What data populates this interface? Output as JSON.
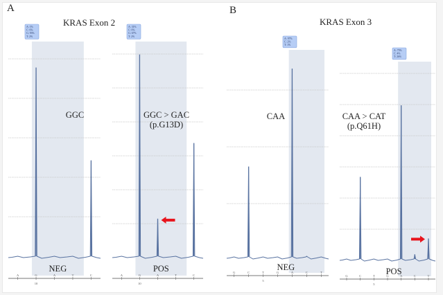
{
  "panels": [
    {
      "letter": "A",
      "title": "KRAS Exon 2"
    },
    {
      "letter": "B",
      "title": "KRAS Exon 3"
    }
  ],
  "colors": {
    "trace": "#5872a0",
    "highlight": "#e3e8f0",
    "grid": "#c8c8c8",
    "arrow": "#e8141c",
    "box_fill": "#b6cdf5",
    "box_border": "#8aa8e0"
  },
  "chart_data": [
    {
      "type": "line",
      "name": "exon2-neg",
      "title": "KRAS Exon 2",
      "codon_label": "GGC",
      "sample_label": "NEG",
      "base_frequencies": [
        "A: 1%",
        "C: 6%",
        "G: 93%",
        "T: 2%"
      ],
      "x_ticks": [
        "A",
        "G",
        "A",
        "T",
        "C"
      ],
      "x_position_label": "10",
      "peaks": [
        {
          "base_index": 1,
          "height": 0.88
        },
        {
          "base_index": 4,
          "height": 0.45
        }
      ],
      "highlighted_bases": [
        1,
        3.6
      ],
      "gridlines": 5,
      "arrow": null
    },
    {
      "type": "line",
      "name": "exon2-pos",
      "title": "KRAS Exon 2",
      "codon_label": "GGC > GAC",
      "codon_sublabel": "(p.G13D)",
      "sample_label": "POS",
      "base_frequencies": [
        "A: 31%",
        "C: 0%",
        "G: 67%",
        "T: 2%"
      ],
      "x_ticks": [
        "A",
        "G",
        "A",
        "T",
        "C"
      ],
      "x_position_label": "10",
      "peaks": [
        {
          "base_index": 1,
          "height": 0.94
        },
        {
          "base_index": 2,
          "height": 0.18
        },
        {
          "base_index": 4,
          "height": 0.53
        }
      ],
      "highlighted_bases": [
        1,
        3.6
      ],
      "gridlines": 6,
      "arrow": {
        "target": "peak-2",
        "direction": "left"
      }
    },
    {
      "type": "line",
      "name": "exon3-neg",
      "title": "KRAS Exon 3",
      "codon_label": "CAA",
      "sample_label": "NEG",
      "base_frequencies": [
        "A: 97%",
        "C: 2%",
        "T: 1%"
      ],
      "x_ticks": [
        "G",
        "C",
        "T",
        "G",
        "A",
        "C",
        "T"
      ],
      "x_position_label": "5",
      "peaks": [
        {
          "base_index": 1,
          "height": 0.44
        },
        {
          "base_index": 4,
          "height": 0.91
        },
        {
          "base_index": 5,
          "height": 0.01
        }
      ],
      "highlighted_bases": [
        4,
        6.5
      ],
      "gridlines": 5,
      "arrow": null
    },
    {
      "type": "line",
      "name": "exon3-pos",
      "title": "KRAS Exon 3",
      "codon_label": "CAA > CAT",
      "codon_sublabel": "(p.Q61H)",
      "sample_label": "POS",
      "base_frequencies": [
        "A: 75%",
        "C: 4%",
        "T: 26%"
      ],
      "x_ticks": [
        "G",
        "C",
        "T",
        "G",
        "A",
        "C",
        "T"
      ],
      "x_position_label": "5",
      "peaks": [
        {
          "base_index": 1,
          "height": 0.42
        },
        {
          "base_index": 4,
          "height": 0.78
        },
        {
          "base_index": 5,
          "height": 0.03
        },
        {
          "base_index": 6,
          "height": 0.11
        }
      ],
      "highlighted_bases": [
        4,
        6.5
      ],
      "gridlines": 6,
      "arrow": {
        "target": "peak-6",
        "direction": "right"
      }
    }
  ]
}
